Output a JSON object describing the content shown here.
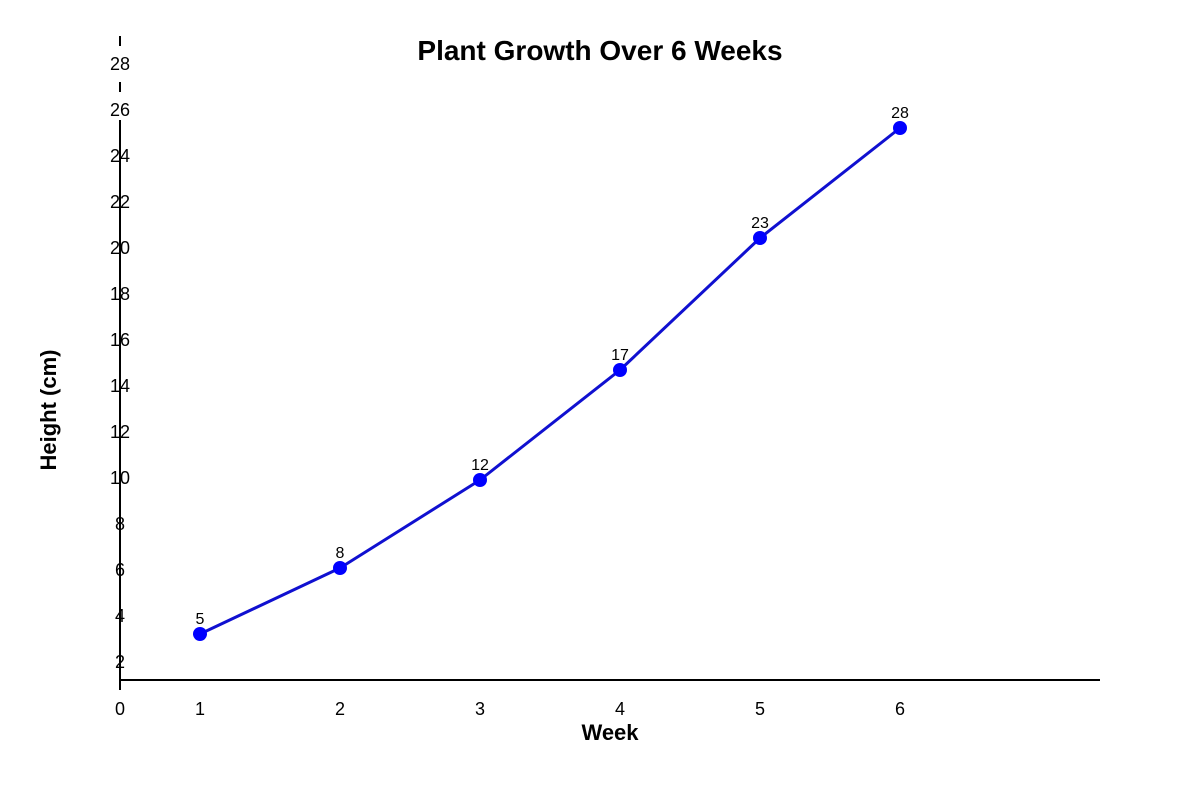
{
  "chart_data": {
    "type": "line",
    "title": "Plant Growth Over 6 Weeks",
    "xlabel": "Week",
    "ylabel": "Height (cm)",
    "x": [
      1,
      2,
      3,
      4,
      5,
      6
    ],
    "series": [
      {
        "values": [
          5,
          8,
          12,
          17,
          23,
          28
        ],
        "color": "#0000ff"
      }
    ],
    "x_ticks": [
      0,
      1,
      2,
      3,
      4,
      5,
      6
    ],
    "y_ticks": [
      2,
      4,
      6,
      8,
      10,
      12,
      14,
      16,
      18,
      20,
      22,
      24,
      26,
      28
    ],
    "xlim": [
      0,
      7
    ],
    "grid": false,
    "legend": "none"
  }
}
